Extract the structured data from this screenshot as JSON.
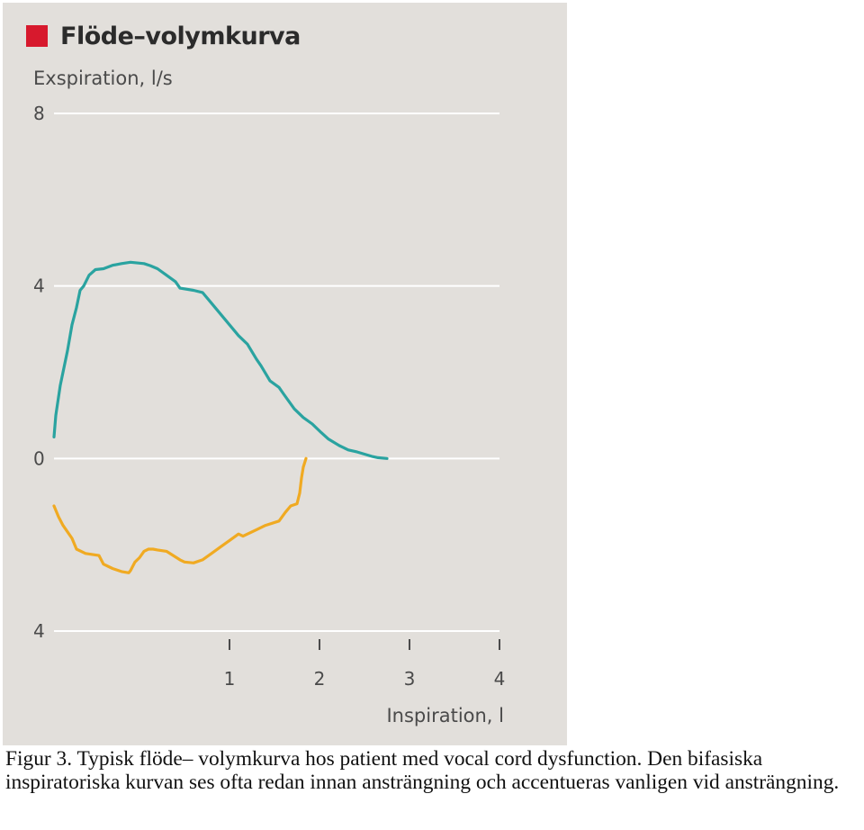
{
  "chart_data": {
    "type": "line",
    "title": "Flöde–volymkurva",
    "ylabel": "Exspiration, l/s",
    "xlabel": "Inspiration, l",
    "xlim": [
      -0.95,
      4
    ],
    "ylim": [
      -4,
      8
    ],
    "x_ticks": [
      1,
      2,
      3,
      4
    ],
    "x_tick_labels": [
      "1",
      "2",
      "3",
      "4"
    ],
    "y_ticks": [
      8,
      4,
      0,
      -4
    ],
    "y_tick_labels": [
      "8",
      "4",
      "0",
      "4"
    ],
    "grid": true,
    "colors": {
      "title_marker": "#d7192d",
      "expiration": "#2aa3a0",
      "inspiration": "#f0aa22",
      "background": "#e2dfdb",
      "grid": "#ffffff"
    },
    "series": [
      {
        "x": [
          -0.95,
          -0.93,
          -0.88,
          -0.8,
          -0.75,
          -0.7,
          -0.66,
          -0.62,
          -0.56,
          -0.49,
          -0.4,
          -0.3,
          -0.2,
          -0.1,
          0.05,
          0.12,
          0.2,
          0.3,
          0.4,
          0.45,
          0.6,
          0.7,
          0.8,
          0.9,
          1.0,
          1.1,
          1.2,
          1.3,
          1.35,
          1.45,
          1.55,
          1.6,
          1.72,
          1.82,
          1.92,
          2.02,
          2.1,
          2.22,
          2.32,
          2.42,
          2.5,
          2.58,
          2.65,
          2.75
        ],
        "y": [
          0.5,
          1.0,
          1.7,
          2.5,
          3.1,
          3.5,
          3.9,
          4.0,
          4.25,
          4.38,
          4.4,
          4.48,
          4.52,
          4.55,
          4.52,
          4.47,
          4.4,
          4.25,
          4.1,
          3.95,
          3.9,
          3.85,
          3.6,
          3.35,
          3.1,
          2.85,
          2.65,
          2.3,
          2.15,
          1.8,
          1.65,
          1.5,
          1.15,
          0.95,
          0.8,
          0.6,
          0.45,
          0.3,
          0.2,
          0.15,
          0.1,
          0.05,
          0.02,
          0.0
        ]
      },
      {
        "x": [
          -0.95,
          -0.9,
          -0.85,
          -0.8,
          -0.75,
          -0.7,
          -0.6,
          -0.45,
          -0.4,
          -0.3,
          -0.2,
          -0.12,
          -0.1,
          -0.05,
          0.0,
          0.05,
          0.1,
          0.15,
          0.2,
          0.3,
          0.45,
          0.5,
          0.6,
          0.7,
          0.8,
          0.9,
          1.0,
          1.1,
          1.15,
          1.3,
          1.4,
          1.55,
          1.62,
          1.68,
          1.75,
          1.78,
          1.8,
          1.82,
          1.85
        ],
        "y": [
          -1.1,
          -1.35,
          -1.55,
          -1.7,
          -1.85,
          -2.1,
          -2.2,
          -2.25,
          -2.45,
          -2.55,
          -2.62,
          -2.65,
          -2.6,
          -2.4,
          -2.3,
          -2.15,
          -2.1,
          -2.1,
          -2.12,
          -2.15,
          -2.35,
          -2.4,
          -2.42,
          -2.35,
          -2.2,
          -2.05,
          -1.9,
          -1.75,
          -1.8,
          -1.65,
          -1.55,
          -1.45,
          -1.25,
          -1.1,
          -1.05,
          -0.8,
          -0.45,
          -0.2,
          0.0
        ]
      }
    ]
  },
  "caption": "Figur 3. Typisk flöde– volymkurva hos patient med vocal cord dysfunction. Den bifasiska inspiratoriska kurvan ses ofta redan innan ansträngning och accentueras vanligen vid ansträngning."
}
